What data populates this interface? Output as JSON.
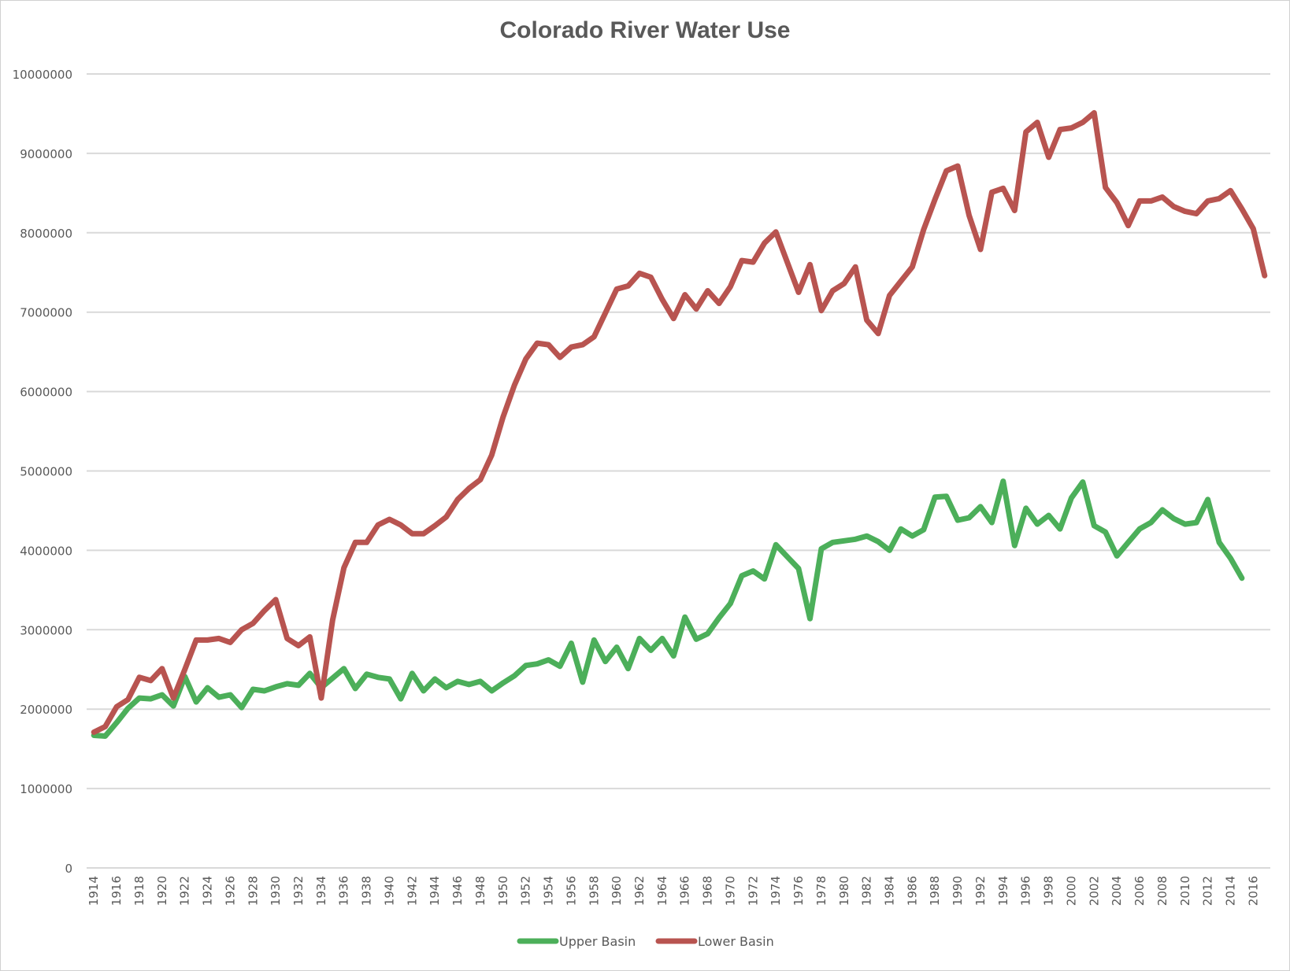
{
  "chart_data": {
    "type": "line",
    "title": "Colorado River Water Use",
    "xlabel": "",
    "ylabel": "",
    "ylim": [
      0,
      10000000
    ],
    "yticks": [
      0,
      1000000,
      2000000,
      3000000,
      4000000,
      5000000,
      6000000,
      7000000,
      8000000,
      9000000,
      10000000
    ],
    "ytick_labels": [
      "0",
      "1000000",
      "2000000",
      "3000000",
      "4000000",
      "5000000",
      "6000000",
      "7000000",
      "8000000",
      "9000000",
      "10000000"
    ],
    "grid": true,
    "legend_position": "bottom",
    "x_start": 1914,
    "x_end": 2017,
    "x_tick_labels": [
      "1914",
      "1916",
      "1918",
      "1920",
      "1922",
      "1924",
      "1926",
      "1928",
      "1930",
      "1932",
      "1934",
      "1936",
      "1938",
      "1940",
      "1942",
      "1944",
      "1946",
      "1948",
      "1950",
      "1952",
      "1954",
      "1956",
      "1958",
      "1960",
      "1962",
      "1964",
      "1966",
      "1968",
      "1970",
      "1972",
      "1974",
      "1976",
      "1978",
      "1980",
      "1982",
      "1984",
      "1986",
      "1988",
      "1990",
      "1992",
      "1994",
      "1996",
      "1998",
      "2000",
      "2002",
      "2004",
      "2006",
      "2008",
      "2010",
      "2012",
      "2014",
      "2016"
    ],
    "series": [
      {
        "name": "Upper Basin",
        "color": "#4caf5a",
        "start_year": 1914,
        "values": [
          1670000,
          1660000,
          1830000,
          2010000,
          2140000,
          2130000,
          2180000,
          2040000,
          2410000,
          2090000,
          2270000,
          2150000,
          2180000,
          2020000,
          2250000,
          2230000,
          2280000,
          2320000,
          2300000,
          2450000,
          2270000,
          2390000,
          2510000,
          2260000,
          2440000,
          2400000,
          2380000,
          2130000,
          2450000,
          2230000,
          2380000,
          2270000,
          2350000,
          2310000,
          2350000,
          2230000,
          2330000,
          2420000,
          2550000,
          2570000,
          2620000,
          2540000,
          2830000,
          2340000,
          2870000,
          2600000,
          2780000,
          2510000,
          2890000,
          2740000,
          2890000,
          2670000,
          3160000,
          2880000,
          2950000,
          3150000,
          3330000,
          3680000,
          3740000,
          3640000,
          4070000,
          3920000,
          3770000,
          3140000,
          4020000,
          4100000,
          4120000,
          4140000,
          4180000,
          4110000,
          4000000,
          4270000,
          4180000,
          4260000,
          4670000,
          4680000,
          4380000,
          4410000,
          4550000,
          4350000,
          4870000,
          4060000,
          4530000,
          4330000,
          4440000,
          4270000,
          4660000,
          4860000,
          4310000,
          4230000,
          3930000,
          4100000,
          4270000,
          4350000,
          4510000,
          4400000,
          4330000,
          4350000,
          4640000,
          4100000,
          3900000,
          3650000
        ]
      },
      {
        "name": "Lower Basin",
        "color": "#b85450",
        "start_year": 1914,
        "values": [
          1710000,
          1780000,
          2030000,
          2120000,
          2400000,
          2360000,
          2510000,
          2140000,
          2500000,
          2870000,
          2870000,
          2890000,
          2840000,
          3000000,
          3080000,
          3240000,
          3380000,
          2890000,
          2800000,
          2910000,
          2140000,
          3120000,
          3780000,
          4100000,
          4100000,
          4320000,
          4390000,
          4320000,
          4210000,
          4210000,
          4310000,
          4420000,
          4640000,
          4780000,
          4890000,
          5200000,
          5680000,
          6080000,
          6410000,
          6610000,
          6590000,
          6430000,
          6560000,
          6590000,
          6690000,
          6990000,
          7290000,
          7330000,
          7490000,
          7440000,
          7160000,
          6920000,
          7220000,
          7040000,
          7270000,
          7110000,
          7320000,
          7650000,
          7630000,
          7870000,
          8010000,
          7630000,
          7250000,
          7600000,
          7020000,
          7270000,
          7360000,
          7570000,
          6900000,
          6730000,
          7210000,
          7390000,
          7570000,
          8040000,
          8420000,
          8780000,
          8840000,
          8220000,
          7790000,
          8510000,
          8560000,
          8280000,
          9270000,
          9390000,
          8950000,
          9300000,
          9320000,
          9390000,
          9510000,
          8570000,
          8380000,
          8090000,
          8400000,
          8400000,
          8450000,
          8330000,
          8270000,
          8240000,
          8400000,
          8430000,
          8530000,
          8300000,
          8050000,
          7460000
        ]
      }
    ]
  }
}
